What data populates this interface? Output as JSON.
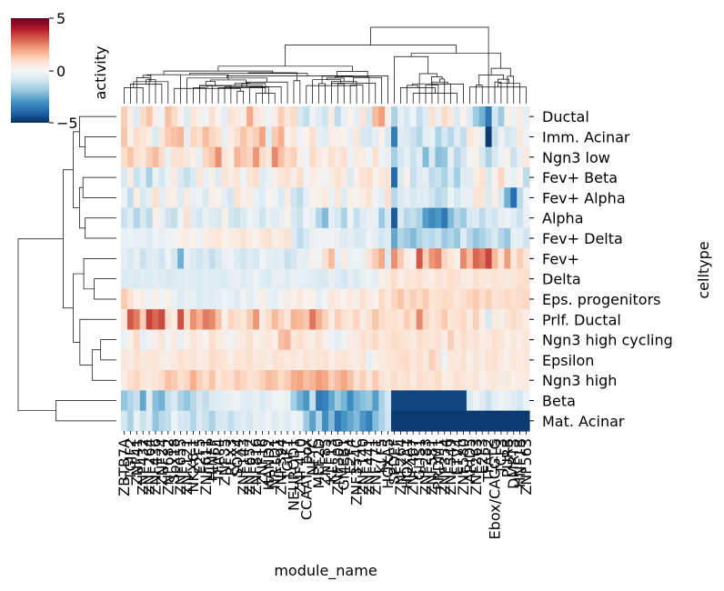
{
  "chart_data": {
    "type": "heatmap",
    "title": "",
    "xlabel": "module_name",
    "ylabel": "celltype",
    "colorbar": {
      "label": "activity",
      "range": [
        -5,
        5
      ],
      "ticks": [
        "5",
        "0",
        "−5"
      ],
      "colormap": "RdBu_r",
      "colors": [
        "#053061",
        "#2166ac",
        "#4393c3",
        "#92c5de",
        "#d1e5f0",
        "#f7f7f7",
        "#fddbc7",
        "#f4a582",
        "#d6604d",
        "#b2182b",
        "#67001f"
      ]
    },
    "rows": [
      "Ductal",
      "Imm. Acinar",
      "Ngn3 low",
      "Fev+ Beta",
      "Fev+ Alpha",
      "Alpha",
      "Fev+ Delta",
      "Fev+",
      "Delta",
      "Eps. progenitors",
      "Prlf. Ductal",
      "Ngn3 high cycling",
      "Epsilon",
      "Ngn3 high",
      "Beta",
      "Mat. Acinar"
    ],
    "x_tick_labels": [
      "ZBTB7A",
      "TGIF2",
      "ZNF41",
      "ZNF432",
      "ZNF264",
      "ZNF436",
      "ZNF24",
      "ZNF682",
      "Sox18",
      "ZNF655",
      "ZNF121",
      "NKX6-1",
      "E2F5",
      "ZNF611",
      "HINFP",
      "TFAP4",
      "ZNF35",
      "RFX3",
      "SOX4",
      "ZNF143",
      "ZNF652",
      "ZNF816",
      "ZNF16",
      "HAND2",
      "NR1D1",
      "ZNF394",
      "TGIF1",
      "NEUROD1",
      "ZNF410",
      "CCAAT_box",
      "NFYC",
      "MEF2D",
      "ZNF85",
      "KLF13",
      "ZNF300",
      "GMEB1",
      "E2F4",
      "ZNF354C",
      "ZNF140",
      "ZNF441",
      "ZNF771",
      "KLF5",
      "HOXA5",
      "SPDEF",
      "ZNF264",
      "HOXA1",
      "ZNF467",
      "GLIS1",
      "ZNF283",
      "ZNF581",
      "PRDM1",
      "ZNF354",
      "ZNF549",
      "ETV4",
      "ZNF580",
      "ARID5",
      "ZNF263",
      "E2F3",
      "TFAP2",
      "Ebox/CACGTG",
      "TCF3",
      "PURB",
      "DMRT3",
      "HNF1B",
      "ZNF563"
    ],
    "values": [
      [
        1.2,
        0.4,
        -0.6,
        0.9,
        1.4,
        0.3,
        -0.2,
        1.5,
        1.0,
        0.2,
        -0.7,
        0.6,
        0.3,
        -0.2,
        0.8,
        0.2,
        -0.5,
        0.7,
        0.5,
        0.3,
        1.9,
        0.6,
        0.4,
        -0.3,
        0.4,
        1.2,
        0.6,
        1.0,
        -0.8,
        -1.2,
        -0.3,
        -0.6,
        -1.0,
        0.4,
        -1.3,
        -0.4,
        0.2,
        -0.5,
        0.7,
        -0.8,
        1.6,
        2.1,
        0.3,
        -1.6,
        -0.4,
        -0.9,
        -0.3,
        -1.2,
        -0.6,
        0.8,
        -0.4,
        1.0,
        0.5,
        -0.7,
        0.2,
        -0.6,
        -1.8,
        -2.4,
        -3.6,
        -0.9,
        -1.8,
        0.3,
        -0.3,
        0.4,
        -0.5
      ],
      [
        1.4,
        0.3,
        0.9,
        0.7,
        0.4,
        -0.8,
        0.6,
        1.3,
        1.5,
        1.7,
        -0.5,
        1.1,
        0.9,
        1.6,
        1.1,
        0.8,
        -0.4,
        0.4,
        0.9,
        1.4,
        1.0,
        1.2,
        2.0,
        -0.6,
        1.3,
        1.8,
        0.2,
        0.6,
        -0.3,
        0.2,
        0.8,
        -0.4,
        -0.6,
        0.4,
        0.3,
        0.2,
        -0.4,
        0.6,
        -0.8,
        -0.9,
        -0.5,
        0.2,
        -0.8,
        -3.5,
        -0.6,
        -0.8,
        -1.1,
        -1.5,
        -0.5,
        -0.4,
        -1.6,
        -0.9,
        -1.4,
        -0.6,
        -1.2,
        0.6,
        0.3,
        -0.4,
        -4.8,
        -1.2,
        -0.3,
        -0.9,
        -0.6,
        0.5,
        -0.2
      ],
      [
        0.9,
        1.4,
        0.8,
        0.5,
        1.2,
        1.6,
        0.9,
        -0.4,
        0.7,
        0.8,
        0.5,
        0.3,
        -0.4,
        1.1,
        1.4,
        2.3,
        0.6,
        0.4,
        1.7,
        1.3,
        1.1,
        2.2,
        1.0,
        0.6,
        2.4,
        1.5,
        1.0,
        1.2,
        0.3,
        -0.2,
        1.0,
        0.5,
        0.3,
        0.9,
        0.5,
        0.8,
        -0.3,
        0.5,
        0.4,
        -0.2,
        0.8,
        -0.2,
        -0.4,
        -1.7,
        -0.9,
        -0.5,
        -1.1,
        -0.6,
        -2.2,
        -0.7,
        -2.1,
        -2.0,
        -0.4,
        -1.4,
        -0.9,
        -0.2,
        0.3,
        -0.8,
        -1.6,
        -0.8,
        -0.3,
        0.3,
        -1.1,
        -0.4,
        0.5
      ],
      [
        -0.8,
        0.4,
        -1.1,
        -0.6,
        -1.6,
        -0.4,
        -0.9,
        -0.3,
        0.5,
        -0.8,
        -1.2,
        -0.7,
        0.6,
        -0.4,
        0.3,
        -0.6,
        0.7,
        0.4,
        0.6,
        -0.2,
        0.6,
        0.9,
        -0.6,
        -0.4,
        0.3,
        0.6,
        0.8,
        0.4,
        0.9,
        -0.3,
        0.4,
        0.2,
        -0.2,
        0.4,
        0.8,
        0.4,
        -0.6,
        0.3,
        0.7,
        0.9,
        0.3,
        0.5,
        0.7,
        -3.9,
        -0.7,
        0.3,
        -1.2,
        -0.6,
        -0.5,
        -1.3,
        -1.1,
        -1.6,
        -0.8,
        -1.7,
        -0.6,
        -0.6,
        0.4,
        0.8,
        -0.8,
        0.2,
        1.1,
        -0.2,
        -0.4,
        0.2,
        -1.3
      ],
      [
        -0.3,
        -1.2,
        0.4,
        -0.8,
        -0.4,
        0.9,
        -0.5,
        0.4,
        0.3,
        -0.6,
        0.5,
        -0.4,
        -0.3,
        -0.7,
        0.3,
        0.2,
        -0.5,
        -0.9,
        0.8,
        0.3,
        0.4,
        -0.4,
        -0.6,
        0.2,
        -0.3,
        -0.7,
        0.4,
        -1.0,
        -1.3,
        -0.5,
        0.2,
        0.3,
        0.5,
        -0.4,
        0.6,
        -0.6,
        0.3,
        0.2,
        0.4,
        0.7,
        -0.3,
        -0.5,
        0.8,
        -1.4,
        -0.7,
        -0.5,
        -0.8,
        -0.6,
        -0.6,
        -1.0,
        -1.4,
        -1.2,
        -0.3,
        -0.9,
        -0.4,
        -0.5,
        0.7,
        0.6,
        -0.7,
        0.4,
        -0.8,
        -2.4,
        -3.8,
        -1.3,
        -0.2
      ],
      [
        -1.1,
        -0.6,
        -1.5,
        -0.8,
        -1.3,
        0.3,
        -0.4,
        -1.0,
        -1.2,
        -0.3,
        0.8,
        -0.6,
        -0.9,
        -0.4,
        -0.6,
        -0.8,
        0.3,
        -0.9,
        -1.1,
        -0.7,
        -0.3,
        -0.5,
        -1.0,
        -0.4,
        -0.6,
        -0.4,
        0.3,
        -0.8,
        -1.1,
        -0.2,
        -0.5,
        -1.5,
        -2.2,
        -0.5,
        -0.9,
        -1.6,
        -0.3,
        -1.2,
        -0.6,
        -0.4,
        -0.5,
        -1.8,
        -0.8,
        -4.2,
        -0.8,
        -1.4,
        -1.2,
        -1.6,
        -2.8,
        -3.2,
        -2.9,
        -3.6,
        -2.2,
        -1.4,
        -1.8,
        -0.9,
        -0.6,
        -1.3,
        -0.7,
        -1.0,
        -0.5,
        -0.3,
        -0.6,
        -1.1,
        -0.4
      ],
      [
        -0.4,
        -0.3,
        -0.5,
        -0.4,
        -0.6,
        -0.3,
        -0.4,
        -0.3,
        -0.2,
        0.3,
        0.4,
        0.2,
        -0.3,
        0.4,
        0.5,
        0.6,
        0.3,
        0.4,
        0.5,
        0.7,
        0.4,
        0.2,
        0.6,
        0.8,
        0.3,
        0.5,
        0.7,
        -0.6,
        -1.3,
        -0.8,
        -0.4,
        -0.2,
        -0.3,
        -0.2,
        -0.4,
        -0.6,
        -0.5,
        -0.8,
        -0.7,
        -0.3,
        -0.5,
        -0.9,
        -0.6,
        -2.6,
        -1.5,
        -1.8,
        -2.2,
        -1.6,
        -1.2,
        -1.4,
        -1.1,
        -1.8,
        -1.5,
        -1.9,
        -0.6,
        -1.4,
        -2.0,
        -1.6,
        -1.2,
        -0.8,
        -1.5,
        -1.9,
        -0.4,
        -0.5,
        -1.0
      ],
      [
        -0.5,
        -0.8,
        -0.4,
        -1.1,
        -0.7,
        -0.6,
        -1.0,
        -0.3,
        -0.9,
        -2.4,
        -0.4,
        -0.7,
        -1.0,
        -0.6,
        -1.2,
        -0.8,
        -0.4,
        -0.3,
        -0.7,
        -1.0,
        -0.6,
        -0.9,
        -0.3,
        -0.5,
        -0.6,
        -0.5,
        -1.1,
        -0.9,
        -0.4,
        -0.5,
        0.3,
        -0.2,
        0.8,
        1.6,
        -0.5,
        0.5,
        -0.4,
        -0.2,
        -0.4,
        0.7,
        1.3,
        1.9,
        -0.7,
        2.3,
        1.3,
        0.4,
        0.2,
        3.1,
        1.2,
        2.2,
        2.5,
        1.1,
        0.6,
        0.3,
        2.4,
        1.5,
        2.9,
        2.6,
        3.4,
        1.6,
        0.7,
        2.1,
        0.5,
        1.2,
        0.6
      ],
      [
        -0.7,
        -0.6,
        -0.8,
        -0.6,
        -0.7,
        -0.5,
        -0.6,
        -0.8,
        -0.7,
        -0.6,
        -0.5,
        -0.6,
        -0.7,
        -0.5,
        -0.6,
        -0.6,
        -0.7,
        -0.5,
        -0.4,
        -0.6,
        -0.5,
        -0.3,
        -0.6,
        -0.7,
        -0.4,
        -0.5,
        -0.6,
        -0.4,
        -0.5,
        -0.5,
        -0.6,
        -0.7,
        -0.8,
        -0.4,
        -0.7,
        -0.9,
        -0.5,
        -0.7,
        -0.4,
        -0.3,
        -0.5,
        0.3,
        0.5,
        0.9,
        0.4,
        0.7,
        0.6,
        0.8,
        0.5,
        0.4,
        0.7,
        0.6,
        0.9,
        0.7,
        0.5,
        0.4,
        0.8,
        0.6,
        0.5,
        0.7,
        0.6,
        0.5,
        0.6,
        0.8,
        0.9
      ],
      [
        1.3,
        0.8,
        0.2,
        0.4,
        -0.3,
        0.3,
        -0.2,
        0.3,
        -0.4,
        -0.6,
        -0.4,
        -0.5,
        -0.7,
        -0.5,
        -0.6,
        -0.5,
        -0.3,
        -0.4,
        -0.6,
        -0.2,
        -0.5,
        -0.3,
        0.3,
        -0.4,
        -0.5,
        -0.2,
        0.4,
        0.3,
        0.5,
        0.2,
        0.3,
        -0.5,
        -0.2,
        0.6,
        0.4,
        0.2,
        0.5,
        0.3,
        0.8,
        0.4,
        0.2,
        1.0,
        0.5,
        1.1,
        1.4,
        0.9,
        1.2,
        1.0,
        1.3,
        0.7,
        0.8,
        1.0,
        0.9,
        0.6,
        0.8,
        1.1,
        1.3,
        0.9,
        1.2,
        0.7,
        0.8,
        1.0,
        0.8,
        0.9,
        1.1
      ],
      [
        0.5,
        3.1,
        2.6,
        1.2,
        3.4,
        2.9,
        3.3,
        0.8,
        0.4,
        3.2,
        0.9,
        2.3,
        1.8,
        2.6,
        2.4,
        1.5,
        0.3,
        1.1,
        0.8,
        0.6,
        1.3,
        2.2,
        0.4,
        0.9,
        1.6,
        1.1,
        0.6,
        1.7,
        1.6,
        1.4,
        2.7,
        1.8,
        1.2,
        0.4,
        1.2,
        0.8,
        0.6,
        1.1,
        0.4,
        0.8,
        1.4,
        1.0,
        0.7,
        0.8,
        0.6,
        1.2,
        0.8,
        2.4,
        1.1,
        0.6,
        0.9,
        1.3,
        0.6,
        0.8,
        1.0,
        0.4,
        1.2,
        0.3,
        -0.8,
        0.5,
        0.3,
        0.6,
        0.9,
        0.7,
        0.4
      ],
      [
        -0.4,
        0.3,
        1.0,
        -0.5,
        -0.3,
        0.4,
        0.6,
        -0.2,
        0.5,
        -0.4,
        0.3,
        0.7,
        0.4,
        0.2,
        0.9,
        0.5,
        0.3,
        -0.2,
        0.4,
        0.5,
        0.8,
        0.3,
        0.4,
        0.6,
        0.3,
        1.5,
        1.7,
        0.6,
        0.9,
        0.5,
        0.4,
        0.7,
        0.3,
        -0.3,
        -0.5,
        -0.2,
        0.4,
        0.5,
        0.8,
        0.6,
        1.0,
        0.5,
        0.7,
        0.9,
        0.8,
        0.6,
        0.5,
        0.9,
        0.7,
        0.6,
        0.8,
        0.4,
        1.2,
        0.5,
        0.9,
        0.6,
        0.7,
        0.4,
        0.5,
        0.8,
        0.6,
        0.3,
        0.5,
        0.4,
        0.6
      ],
      [
        0.6,
        0.4,
        0.8,
        0.5,
        0.6,
        0.7,
        0.4,
        0.3,
        0.5,
        0.8,
        0.6,
        0.7,
        0.4,
        0.5,
        0.9,
        0.8,
        0.6,
        0.4,
        0.7,
        0.6,
        0.9,
        0.5,
        0.6,
        0.4,
        0.8,
        0.7,
        0.5,
        0.6,
        0.4,
        0.7,
        0.5,
        0.6,
        0.8,
        0.4,
        0.6,
        0.7,
        0.5,
        0.4,
        0.6,
        -0.4,
        0.3,
        0.5,
        0.6,
        0.7,
        0.9,
        1.0,
        0.6,
        0.8,
        0.5,
        1.2,
        0.7,
        -0.3,
        0.6,
        0.5,
        0.8,
        0.3,
        0.6,
        0.4,
        0.7,
        0.8,
        0.5,
        0.3,
        0.6,
        0.5,
        0.6
      ],
      [
        0.4,
        0.8,
        1.1,
        0.7,
        0.5,
        0.6,
        0.9,
        1.5,
        1.3,
        0.8,
        1.1,
        1.8,
        1.2,
        0.9,
        1.4,
        0.6,
        1.0,
        0.8,
        1.3,
        1.1,
        0.7,
        0.9,
        1.2,
        1.6,
        1.4,
        1.0,
        1.3,
        1.8,
        2.0,
        1.5,
        1.7,
        2.1,
        1.9,
        1.2,
        1.6,
        2.0,
        1.5,
        0.8,
        1.2,
        0.6,
        1.3,
        0.7,
        0.5,
        0.9,
        0.6,
        0.8,
        0.5,
        0.9,
        0.7,
        0.6,
        1.0,
        0.4,
        0.5,
        0.8,
        0.6,
        0.5,
        0.7,
        0.3,
        0.5,
        0.6,
        0.4,
        0.5,
        0.3,
        0.4,
        0.5
      ],
      [
        -2.0,
        -1.5,
        -1.1,
        -2.6,
        -0.6,
        -2.1,
        -2.4,
        -1.2,
        -0.8,
        -1.6,
        -2.0,
        -1.4,
        -0.9,
        -1.2,
        -0.7,
        -0.6,
        -0.5,
        -0.4,
        -0.3,
        -0.5,
        -0.6,
        -0.4,
        -0.7,
        -0.5,
        -0.3,
        -0.2,
        -0.4,
        -1.7,
        -2.4,
        -2.9,
        -1.2,
        -3.6,
        -3.4,
        -2.6,
        -1.8,
        -2.3,
        -3.2,
        -2.4,
        -2.1,
        -1.9,
        -2.8,
        -1.6,
        -0.9,
        -4.6,
        -4.6,
        -4.6,
        -4.6,
        -4.6,
        -4.6,
        -4.6,
        -4.6,
        -4.6,
        -4.6,
        -4.6,
        -4.6,
        -0.8,
        -0.2,
        -0.6,
        -1.1,
        -0.5,
        -0.2,
        -0.4,
        -0.6,
        -0.9,
        -0.3
      ],
      [
        -0.9,
        -1.6,
        -0.4,
        -1.1,
        -0.6,
        -2.0,
        -1.4,
        -1.2,
        -0.3,
        -0.8,
        -1.0,
        -1.5,
        -0.7,
        -1.1,
        -1.6,
        -0.9,
        -0.7,
        -1.2,
        -0.8,
        -0.6,
        -0.9,
        -0.4,
        -0.5,
        -0.3,
        -0.6,
        -0.4,
        -0.7,
        -0.3,
        -0.5,
        -1.8,
        -2.7,
        -1.5,
        -3.1,
        -2.2,
        -3.6,
        -3.0,
        -2.6,
        -2.2,
        -2.9,
        -3.4,
        -2.2,
        -1.6,
        -1.0,
        -4.8,
        -4.8,
        -4.8,
        -4.8,
        -4.8,
        -4.8,
        -4.8,
        -4.8,
        -4.8,
        -4.8,
        -4.8,
        -4.8,
        -4.8,
        -4.8,
        -4.8,
        -4.8,
        -4.8,
        -4.8,
        -4.8,
        -4.8,
        -4.8,
        -4.8
      ]
    ]
  }
}
